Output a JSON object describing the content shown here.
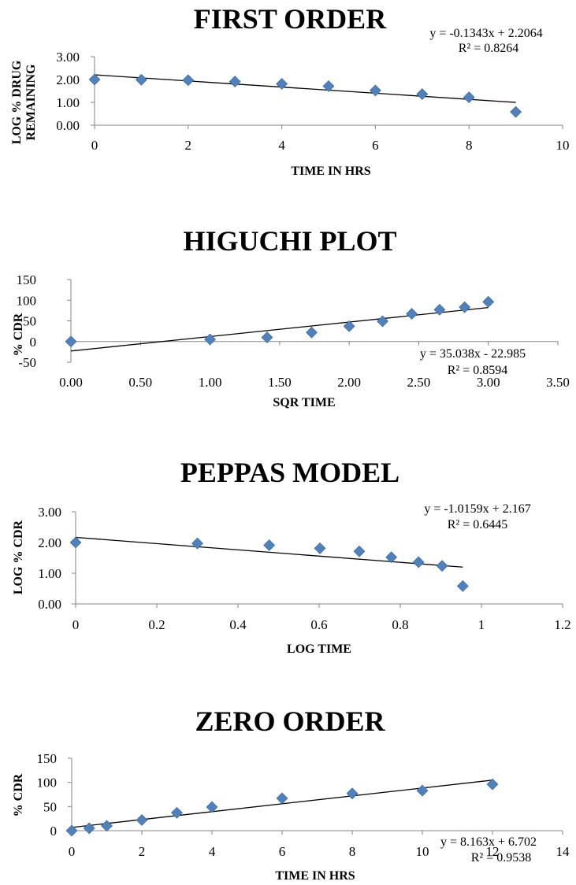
{
  "charts": [
    {
      "title": "FIRST ORDER",
      "xlabel": "TIME IN HRS",
      "ylabel_lines": [
        "LOG % DRUG",
        "REMAINING"
      ],
      "equation": "y = -0.1343x + 2.2064",
      "r_squared": "R² = 0.8264"
    },
    {
      "title": "HIGUCHI PLOT",
      "xlabel": "SQR TIME",
      "ylabel_lines": [
        "% CDR"
      ],
      "equation": "y = 35.038x - 22.985",
      "r_squared": "R² = 0.8594"
    },
    {
      "title": "PEPPAS MODEL",
      "xlabel": "LOG TIME",
      "ylabel_lines": [
        "LOG % CDR"
      ],
      "equation": "y = -1.0159x + 2.167",
      "r_squared": "R² = 0.6445"
    },
    {
      "title": "ZERO ORDER",
      "xlabel": "TIME IN HRS",
      "ylabel_lines": [
        "% CDR"
      ],
      "equation": "y = 8.163x + 6.702",
      "r_squared": "R² = 0.9538"
    }
  ],
  "chart_data": [
    {
      "type": "scatter",
      "title": "FIRST ORDER",
      "xlabel": "TIME IN HRS",
      "ylabel": "LOG % DRUG REMAINING",
      "x": [
        0,
        1,
        2,
        3,
        4,
        5,
        6,
        7,
        8,
        9
      ],
      "y": [
        2.0,
        1.99,
        1.97,
        1.91,
        1.81,
        1.71,
        1.52,
        1.36,
        1.22,
        0.58
      ],
      "xlim": [
        0,
        10
      ],
      "ylim": [
        0,
        3
      ],
      "xticks": [
        "0",
        "2",
        "4",
        "6",
        "8",
        "10"
      ],
      "yticks": [
        "0.00",
        "1.00",
        "2.00",
        "3.00"
      ],
      "trendline": {
        "slope": -0.1343,
        "intercept": 2.2064,
        "x_range": [
          0,
          9
        ]
      },
      "marker_color": "#4f81bd",
      "grid": false
    },
    {
      "type": "scatter",
      "title": "HIGUCHI PLOT",
      "xlabel": "SQR TIME",
      "ylabel": "% CDR",
      "x": [
        0,
        1.0,
        1.41,
        1.73,
        2.0,
        2.24,
        2.45,
        2.65,
        2.83,
        3.0
      ],
      "y": [
        0,
        5,
        10,
        22,
        37,
        49,
        67,
        77,
        83,
        96
      ],
      "xlim": [
        0,
        3.5
      ],
      "ylim": [
        -50,
        150
      ],
      "xticks": [
        "0.00",
        "0.50",
        "1.00",
        "1.50",
        "2.00",
        "2.50",
        "3.00",
        "3.50"
      ],
      "yticks": [
        "-50",
        "0",
        "50",
        "100",
        "150"
      ],
      "trendline": {
        "slope": 35.038,
        "intercept": -22.985,
        "x_range": [
          0,
          3
        ]
      },
      "marker_color": "#4f81bd",
      "grid": false
    },
    {
      "type": "scatter",
      "title": "PEPPAS MODEL",
      "xlabel": "LOG TIME",
      "ylabel": "LOG % CDR",
      "x": [
        0,
        0.3,
        0.477,
        0.602,
        0.699,
        0.778,
        0.845,
        0.903,
        0.954
      ],
      "y": [
        2.0,
        1.97,
        1.91,
        1.81,
        1.71,
        1.52,
        1.36,
        1.24,
        0.58
      ],
      "xlim": [
        0,
        1.2
      ],
      "ylim": [
        0,
        3
      ],
      "xticks": [
        "0",
        "0.2",
        "0.4",
        "0.6",
        "0.8",
        "1",
        "1.2"
      ],
      "yticks": [
        "0.00",
        "1.00",
        "2.00",
        "3.00"
      ],
      "trendline": {
        "slope": -1.0159,
        "intercept": 2.167,
        "x_range": [
          0,
          0.954
        ]
      },
      "marker_color": "#4f81bd",
      "grid": false
    },
    {
      "type": "scatter",
      "title": "ZERO ORDER",
      "xlabel": "TIME IN HRS",
      "ylabel": "% CDR",
      "x": [
        0,
        0.5,
        1,
        2,
        3,
        4,
        6,
        8,
        10,
        12
      ],
      "y": [
        0,
        5,
        10,
        22,
        37,
        49,
        67,
        77,
        83,
        96
      ],
      "xlim": [
        0,
        14
      ],
      "ylim": [
        0,
        150
      ],
      "xticks": [
        "0",
        "2",
        "4",
        "6",
        "8",
        "10",
        "12",
        "14"
      ],
      "yticks": [
        "0",
        "50",
        "100",
        "150"
      ],
      "trendline": {
        "slope": 8.163,
        "intercept": 6.702,
        "x_range": [
          0,
          12
        ]
      },
      "marker_color": "#4f81bd",
      "grid": false
    }
  ]
}
